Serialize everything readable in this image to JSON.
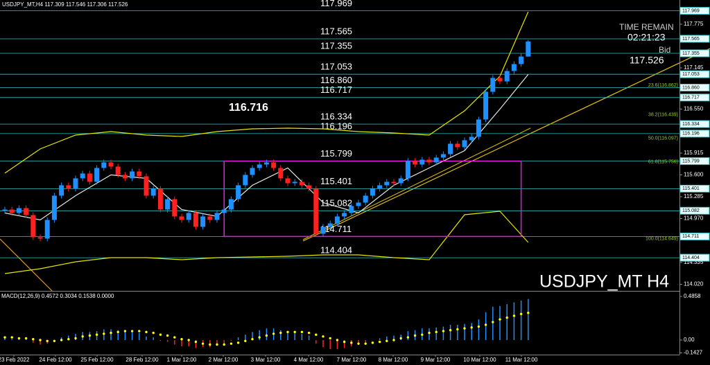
{
  "header": {
    "symbol": "USDJPY_MT,H4"
  },
  "chart_data": {
    "type": "candlestick",
    "ylim": [
      113.925,
      118.125
    ],
    "yticks": [
      117.775,
      117.145,
      {
        "value": 116.55,
        "label": "116.550"
      },
      115.915,
      {
        "value": 115.6,
        "label": "115.600"
      },
      115.285,
      {
        "value": 114.97,
        "label": "114.970"
      },
      114.335,
      {
        "value": 114.02,
        "label": "114.020"
      }
    ],
    "time_labels": [
      "23 Feb 2022",
      "24 Feb 12:00",
      "25 Feb 12:00",
      "28 Feb 12:00",
      "1 Mar 12:00",
      "2 Mar 12:00",
      "3 Mar 12:00",
      "4 Mar 12:00",
      "7 Mar 12:00",
      "8 Mar 12:00",
      "9 Mar 12:00",
      "10 Mar 12:00",
      "11 Mar 12:00"
    ],
    "colors": {
      "up": "#1e90ff",
      "down": "#ff2020"
    },
    "candles": {
      "open": [
        115.08,
        115.1,
        115.05,
        115.12,
        115.02,
        114.7,
        114.68,
        114.95,
        115.3,
        115.45,
        115.4,
        115.55,
        115.62,
        115.5,
        115.7,
        115.78,
        115.72,
        115.6,
        115.55,
        115.65,
        115.58,
        115.3,
        115.4,
        115.1,
        115.25,
        115.0,
        114.95,
        115.05,
        114.85,
        115.0,
        114.95,
        115.05,
        115.1,
        115.25,
        115.45,
        115.6,
        115.7,
        115.75,
        115.78,
        115.7,
        115.55,
        115.48,
        115.5,
        115.45,
        115.4,
        114.75,
        114.85,
        114.9,
        115.0,
        115.05,
        115.15,
        115.2,
        115.3,
        115.4,
        115.45,
        115.5,
        115.48,
        115.55,
        115.8,
        115.75,
        115.82,
        115.78,
        115.85,
        115.9,
        116.05,
        116.0,
        116.1,
        116.15,
        116.4,
        116.8,
        117.0,
        116.95,
        117.1,
        117.2,
        117.309
      ],
      "high": [
        115.14,
        115.14,
        115.16,
        115.16,
        115.06,
        114.74,
        114.99,
        115.34,
        115.49,
        115.49,
        115.59,
        115.66,
        115.66,
        115.74,
        115.82,
        115.82,
        115.76,
        115.64,
        115.69,
        115.69,
        115.62,
        115.44,
        115.44,
        115.29,
        115.29,
        115.04,
        115.09,
        115.09,
        115.04,
        115.04,
        115.09,
        115.14,
        115.29,
        115.49,
        115.64,
        115.74,
        115.79,
        115.82,
        115.82,
        115.74,
        115.59,
        115.54,
        115.54,
        115.49,
        115.44,
        114.89,
        114.94,
        115.04,
        115.09,
        115.19,
        115.24,
        115.34,
        115.44,
        115.49,
        115.54,
        115.54,
        115.59,
        115.84,
        115.84,
        115.86,
        115.86,
        115.89,
        115.94,
        116.09,
        116.09,
        116.14,
        116.19,
        116.44,
        116.84,
        117.04,
        117.04,
        117.14,
        117.24,
        117.35,
        117.546
      ],
      "low": [
        115.04,
        115.01,
        115.01,
        114.98,
        114.66,
        114.64,
        114.64,
        114.91,
        115.26,
        115.36,
        115.36,
        115.51,
        115.46,
        115.46,
        115.66,
        115.68,
        115.56,
        115.51,
        115.51,
        115.54,
        115.26,
        115.26,
        115.06,
        115.06,
        114.96,
        114.91,
        114.91,
        114.81,
        114.81,
        114.91,
        114.91,
        115.01,
        115.06,
        115.21,
        115.41,
        115.56,
        115.66,
        115.71,
        115.66,
        115.51,
        115.44,
        115.44,
        115.41,
        115.36,
        114.71,
        114.71,
        114.81,
        114.86,
        114.96,
        115.01,
        115.11,
        115.16,
        115.26,
        115.36,
        115.41,
        115.44,
        115.44,
        115.51,
        115.71,
        115.71,
        115.74,
        115.74,
        115.81,
        115.86,
        115.96,
        115.96,
        116.06,
        116.11,
        116.36,
        116.76,
        116.91,
        116.91,
        117.06,
        117.16,
        117.306
      ],
      "close": [
        115.1,
        115.05,
        115.12,
        115.02,
        114.7,
        114.68,
        114.95,
        115.3,
        115.45,
        115.4,
        115.55,
        115.62,
        115.5,
        115.7,
        115.78,
        115.72,
        115.6,
        115.55,
        115.65,
        115.58,
        115.3,
        115.4,
        115.1,
        115.25,
        115.0,
        114.95,
        115.05,
        114.85,
        115.0,
        114.95,
        115.05,
        115.1,
        115.25,
        115.45,
        115.6,
        115.7,
        115.75,
        115.78,
        115.7,
        115.55,
        115.48,
        115.5,
        115.45,
        115.4,
        114.75,
        114.85,
        114.9,
        115.0,
        115.05,
        115.15,
        115.2,
        115.3,
        115.4,
        115.45,
        115.5,
        115.48,
        115.55,
        115.8,
        115.75,
        115.82,
        115.78,
        115.85,
        115.9,
        116.05,
        116.0,
        116.1,
        116.15,
        116.4,
        116.8,
        117.0,
        116.95,
        117.1,
        117.2,
        117.309,
        117.526
      ]
    },
    "levels": {
      "color": "#2ec4c4",
      "values": [
        117.969,
        117.565,
        117.355,
        117.053,
        {
          "value": 116.86,
          "label": "116.860"
        },
        116.717,
        116.334,
        116.196,
        115.799,
        115.401,
        115.082,
        114.711,
        114.404
      ]
    },
    "highlight": 116.716,
    "fibonacci": {
      "color": "#9acd32",
      "levels": [
        {
          "value": 116.862,
          "label": "23.6(116.862)"
        },
        {
          "value": 116.439,
          "label": "38.2(116.439)"
        },
        {
          "value": 116.097,
          "label": "50.0(116.097)"
        },
        {
          "value": 115.756,
          "label": "61.8(115.756)"
        },
        {
          "value": 114.649,
          "label": "100.0(114.649)"
        }
      ]
    },
    "bands": [
      {
        "color": "#e6e600",
        "x": [
          0,
          5,
          10,
          15,
          20,
          25,
          30,
          35,
          40,
          45,
          50,
          55,
          60,
          65,
          70,
          74
        ],
        "values": [
          115.625,
          115.975,
          116.175,
          116.225,
          116.175,
          116.155,
          116.225,
          116.265,
          116.275,
          116.265,
          116.225,
          116.205,
          116.175,
          116.525,
          117.025,
          117.955
        ]
      },
      {
        "color": "#e6e600",
        "x": [
          0,
          5,
          10,
          15,
          20,
          25,
          30,
          35,
          40,
          45,
          50,
          55,
          60,
          65,
          70,
          74
        ],
        "values": [
          114.175,
          114.245,
          114.345,
          114.405,
          114.405,
          114.375,
          114.405,
          114.415,
          114.425,
          114.445,
          114.445,
          114.405,
          114.375,
          115.025,
          115.075,
          114.625
        ]
      },
      {
        "color": "#e8e8e8",
        "x": [
          0,
          5,
          10,
          15,
          20,
          25,
          30,
          35,
          40,
          45,
          50,
          55,
          60,
          65,
          70,
          74
        ],
        "values": [
          115.05,
          114.95,
          115.3,
          115.6,
          115.55,
          115.1,
          115.0,
          115.45,
          115.7,
          115.2,
          115.05,
          115.45,
          115.7,
          115.95,
          116.55,
          117.05
        ]
      }
    ],
    "box": {
      "color": "#e020e0",
      "x": [
        31,
        73
      ],
      "values": [
        115.799,
        114.711
      ]
    },
    "time_remain": {
      "label": "TIME REMAIN",
      "value": "02:21:23",
      "bid_label": "Bid"
    },
    "watermark": "USDJPY_MT H4",
    "macd": {
      "title": "MACD(12,26,9)",
      "ylim": [
        -0.162,
        0.532
      ],
      "yticks": [
        0.4858,
        {
          "value": 0,
          "label": "0.00"
        },
        -0.1427
      ],
      "colors": {
        "up": "#1e90ff",
        "down": "#ff2020",
        "signal": "#ffff00"
      },
      "histogram": [
        0.02,
        0.01,
        0.02,
        0.01,
        -0.03,
        -0.05,
        -0.04,
        0.0,
        0.03,
        0.05,
        0.07,
        0.09,
        0.09,
        0.1,
        0.12,
        0.12,
        0.11,
        0.09,
        0.09,
        0.08,
        0.04,
        0.03,
        -0.01,
        -0.02,
        -0.05,
        -0.07,
        -0.07,
        -0.09,
        -0.08,
        -0.08,
        -0.06,
        -0.04,
        -0.01,
        0.03,
        0.06,
        0.09,
        0.11,
        0.13,
        0.13,
        0.11,
        0.09,
        0.08,
        0.07,
        0.05,
        -0.04,
        -0.08,
        -0.1,
        -0.1,
        -0.09,
        -0.07,
        -0.05,
        -0.03,
        0.0,
        0.02,
        0.04,
        0.05,
        0.06,
        0.1,
        0.11,
        0.13,
        0.13,
        0.14,
        0.15,
        0.17,
        0.17,
        0.18,
        0.19,
        0.23,
        0.31,
        0.37,
        0.38,
        0.4,
        0.42,
        0.44,
        0.4572
      ],
      "signal": [
        0.03,
        0.03,
        0.02,
        0.02,
        0.01,
        0.0,
        -0.01,
        -0.01,
        0.0,
        0.01,
        0.02,
        0.04,
        0.05,
        0.06,
        0.07,
        0.08,
        0.09,
        0.1,
        0.1,
        0.1,
        0.09,
        0.08,
        0.06,
        0.05,
        0.03,
        0.01,
        0.0,
        -0.02,
        -0.04,
        -0.05,
        -0.05,
        -0.05,
        -0.04,
        -0.03,
        -0.01,
        0.01,
        0.03,
        0.05,
        0.07,
        0.08,
        0.09,
        0.09,
        0.09,
        0.08,
        0.06,
        0.04,
        0.02,
        0.0,
        -0.02,
        -0.03,
        -0.04,
        -0.04,
        -0.03,
        -0.02,
        -0.01,
        0.0,
        0.02,
        0.03,
        0.05,
        0.06,
        0.08,
        0.09,
        0.1,
        0.11,
        0.12,
        0.13,
        0.14,
        0.15,
        0.17,
        0.2,
        0.23,
        0.25,
        0.27,
        0.29,
        0.3034
      ],
      "readouts": [
        0.1538,
        {
          "value": 0,
          "label": "0.0000"
        }
      ]
    }
  }
}
